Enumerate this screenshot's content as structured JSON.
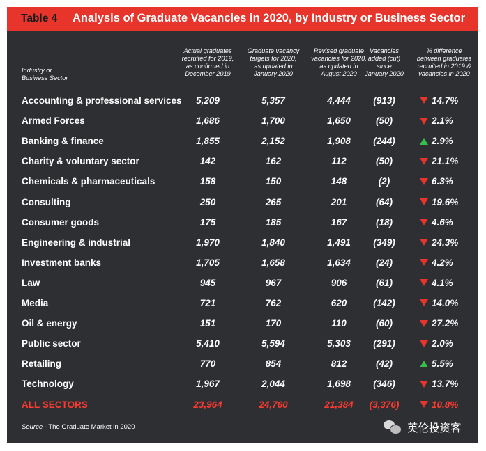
{
  "table": {
    "number": "Table 4",
    "title": "Analysis of Graduate Vacancies in 2020, by Industry or Business Sector"
  },
  "headers": {
    "industry": [
      "Industry or",
      "Business Sector"
    ],
    "actual": [
      "Actual graduates",
      "recruited for 2019,",
      "as confirmed in",
      "December 2019"
    ],
    "targets": [
      "Graduate vacancy",
      "targets for 2020,",
      "as updated in",
      "January 2020"
    ],
    "revised": [
      "Revised graduate",
      "vacancies for 2020,",
      "as updated in",
      "August 2020"
    ],
    "added": [
      "Vacancies",
      "added (cut)",
      "since",
      "January 2020"
    ],
    "difference": [
      "% difference",
      "between graduates",
      "recruited in 2019 &",
      "vacancies in 2020"
    ]
  },
  "rows": [
    {
      "sector": "Accounting & professional services",
      "actual": "5,209",
      "target": "5,357",
      "revised": "4,444",
      "added": "(913)",
      "direction": "down",
      "pct": "14.7%"
    },
    {
      "sector": "Armed Forces",
      "actual": "1,686",
      "target": "1,700",
      "revised": "1,650",
      "added": "(50)",
      "direction": "down",
      "pct": "2.1%"
    },
    {
      "sector": "Banking & finance",
      "actual": "1,855",
      "target": "2,152",
      "revised": "1,908",
      "added": "(244)",
      "direction": "up",
      "pct": "2.9%"
    },
    {
      "sector": "Charity & voluntary sector",
      "actual": "142",
      "target": "162",
      "revised": "112",
      "added": "(50)",
      "direction": "down",
      "pct": "21.1%"
    },
    {
      "sector": "Chemicals & pharmaceuticals",
      "actual": "158",
      "target": "150",
      "revised": "148",
      "added": "(2)",
      "direction": "down",
      "pct": "6.3%"
    },
    {
      "sector": "Consulting",
      "actual": "250",
      "target": "265",
      "revised": "201",
      "added": "(64)",
      "direction": "down",
      "pct": "19.6%"
    },
    {
      "sector": "Consumer goods",
      "actual": "175",
      "target": "185",
      "revised": "167",
      "added": "(18)",
      "direction": "down",
      "pct": "4.6%"
    },
    {
      "sector": "Engineering & industrial",
      "actual": "1,970",
      "target": "1,840",
      "revised": "1,491",
      "added": "(349)",
      "direction": "down",
      "pct": "24.3%"
    },
    {
      "sector": "Investment banks",
      "actual": "1,705",
      "target": "1,658",
      "revised": "1,634",
      "added": "(24)",
      "direction": "down",
      "pct": "4.2%"
    },
    {
      "sector": "Law",
      "actual": "945",
      "target": "967",
      "revised": "906",
      "added": "(61)",
      "direction": "down",
      "pct": "4.1%"
    },
    {
      "sector": "Media",
      "actual": "721",
      "target": "762",
      "revised": "620",
      "added": "(142)",
      "direction": "down",
      "pct": "14.0%"
    },
    {
      "sector": "Oil & energy",
      "actual": "151",
      "target": "170",
      "revised": "110",
      "added": "(60)",
      "direction": "down",
      "pct": "27.2%"
    },
    {
      "sector": "Public sector",
      "actual": "5,410",
      "target": "5,594",
      "revised": "5,303",
      "added": "(291)",
      "direction": "down",
      "pct": "2.0%"
    },
    {
      "sector": "Retailing",
      "actual": "770",
      "target": "854",
      "revised": "812",
      "added": "(42)",
      "direction": "up",
      "pct": "5.5%"
    },
    {
      "sector": "Technology",
      "actual": "1,967",
      "target": "2,044",
      "revised": "1,698",
      "added": "(346)",
      "direction": "down",
      "pct": "13.7%"
    }
  ],
  "total": {
    "sector": "ALL SECTORS",
    "actual": "23,964",
    "target": "24,760",
    "revised": "21,384",
    "added": "(3,376)",
    "direction": "down",
    "pct": "10.8%"
  },
  "source": {
    "label": "Source",
    "text": " - The Graduate Market in 2020"
  },
  "watermark": {
    "icon": "wechat-icon",
    "text": "英伦投资客"
  },
  "colors": {
    "title_bar": "#e8352c",
    "background": "#2e2f33",
    "down_arrow": "#e8352c",
    "up_arrow": "#35c049",
    "total_text": "#ff3b30"
  }
}
